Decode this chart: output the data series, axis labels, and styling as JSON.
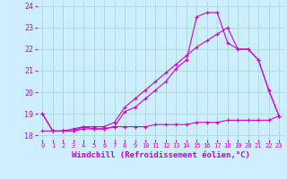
{
  "background_color": "#cceeff",
  "grid_color": "#aaddcc",
  "line_color": "#cc00cc",
  "x": [
    0,
    1,
    2,
    3,
    4,
    5,
    6,
    7,
    8,
    9,
    10,
    11,
    12,
    13,
    14,
    15,
    16,
    17,
    18,
    19,
    20,
    21,
    22,
    23
  ],
  "line1": [
    19.0,
    18.2,
    18.2,
    18.2,
    18.4,
    18.3,
    18.3,
    18.4,
    19.1,
    19.3,
    19.7,
    20.1,
    20.5,
    21.1,
    21.5,
    23.5,
    23.7,
    23.7,
    22.3,
    22.0,
    22.0,
    21.5,
    20.1,
    18.9
  ],
  "line2": [
    19.0,
    18.2,
    18.2,
    18.3,
    18.4,
    18.4,
    18.4,
    18.6,
    19.3,
    19.7,
    20.1,
    20.5,
    20.9,
    21.3,
    21.7,
    22.1,
    22.4,
    22.7,
    23.0,
    22.0,
    22.0,
    21.5,
    20.1,
    18.9
  ],
  "line3": [
    18.2,
    18.2,
    18.2,
    18.2,
    18.3,
    18.3,
    18.3,
    18.4,
    18.4,
    18.4,
    18.4,
    18.5,
    18.5,
    18.5,
    18.5,
    18.6,
    18.6,
    18.6,
    18.7,
    18.7,
    18.7,
    18.7,
    18.7,
    18.9
  ],
  "ylim": [
    17.8,
    24.2
  ],
  "xlim": [
    -0.5,
    23.5
  ],
  "yticks": [
    18,
    19,
    20,
    21,
    22,
    23,
    24
  ],
  "xticks": [
    0,
    1,
    2,
    3,
    4,
    5,
    6,
    7,
    8,
    9,
    10,
    11,
    12,
    13,
    14,
    15,
    16,
    17,
    18,
    19,
    20,
    21,
    22,
    23
  ],
  "xlabel": "Windchill (Refroidissement éolien,°C)",
  "xtick_fontsize": 5.0,
  "ytick_fontsize": 6.0,
  "xlabel_fontsize": 6.5,
  "marker": "+"
}
